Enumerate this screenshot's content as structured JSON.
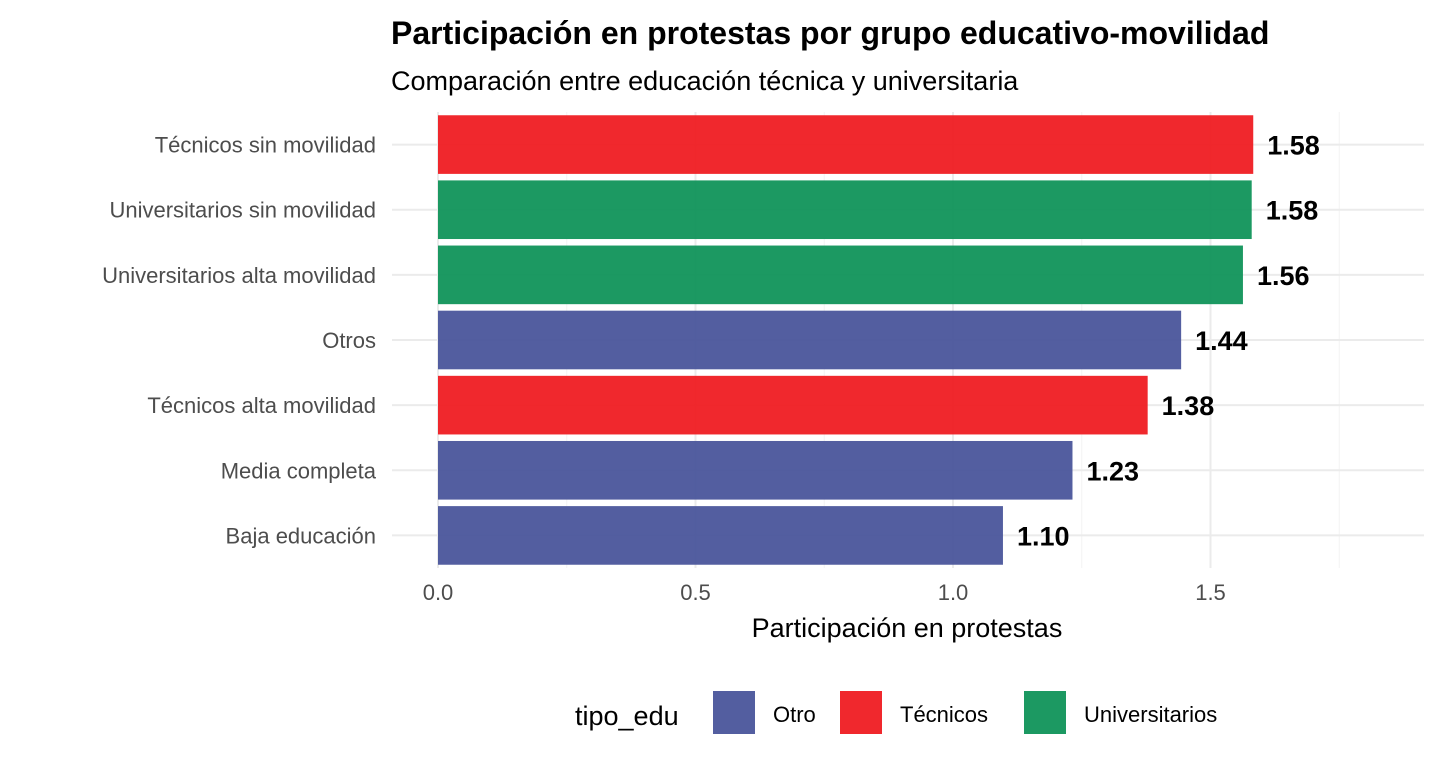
{
  "chart_data": {
    "type": "bar",
    "orientation": "horizontal",
    "title": "Participación en protestas por grupo educativo-movilidad",
    "subtitle": "Comparación entre educación técnica y universitaria",
    "xlabel": "Participación en protestas",
    "ylabel": "",
    "xlim": [
      0,
      1.9
    ],
    "xticks": [
      0.0,
      0.5,
      1.0,
      1.5
    ],
    "xtick_labels": [
      "0.0",
      "0.5",
      "1.0",
      "1.5"
    ],
    "grid": true,
    "categories": [
      "Técnicos sin movilidad",
      "Universitarios sin movilidad",
      "Universitarios alta movilidad",
      "Otros",
      "Técnicos alta movilidad",
      "Media completa",
      "Baja educación"
    ],
    "values": [
      1.583,
      1.58,
      1.563,
      1.443,
      1.378,
      1.232,
      1.097
    ],
    "value_labels": [
      "1.58",
      "1.58",
      "1.56",
      "1.44",
      "1.38",
      "1.23",
      "1.10"
    ],
    "groups": [
      "Técnicos",
      "Universitarios",
      "Universitarios",
      "Otro",
      "Técnicos",
      "Otro",
      "Otro"
    ],
    "legend": {
      "title": "tipo_edu",
      "position": "bottom",
      "entries": [
        {
          "name": "Otro",
          "color": "#4a559b"
        },
        {
          "name": "Técnicos",
          "color": "#ef1c22"
        },
        {
          "name": "Universitarios",
          "color": "#10935a"
        }
      ]
    }
  }
}
